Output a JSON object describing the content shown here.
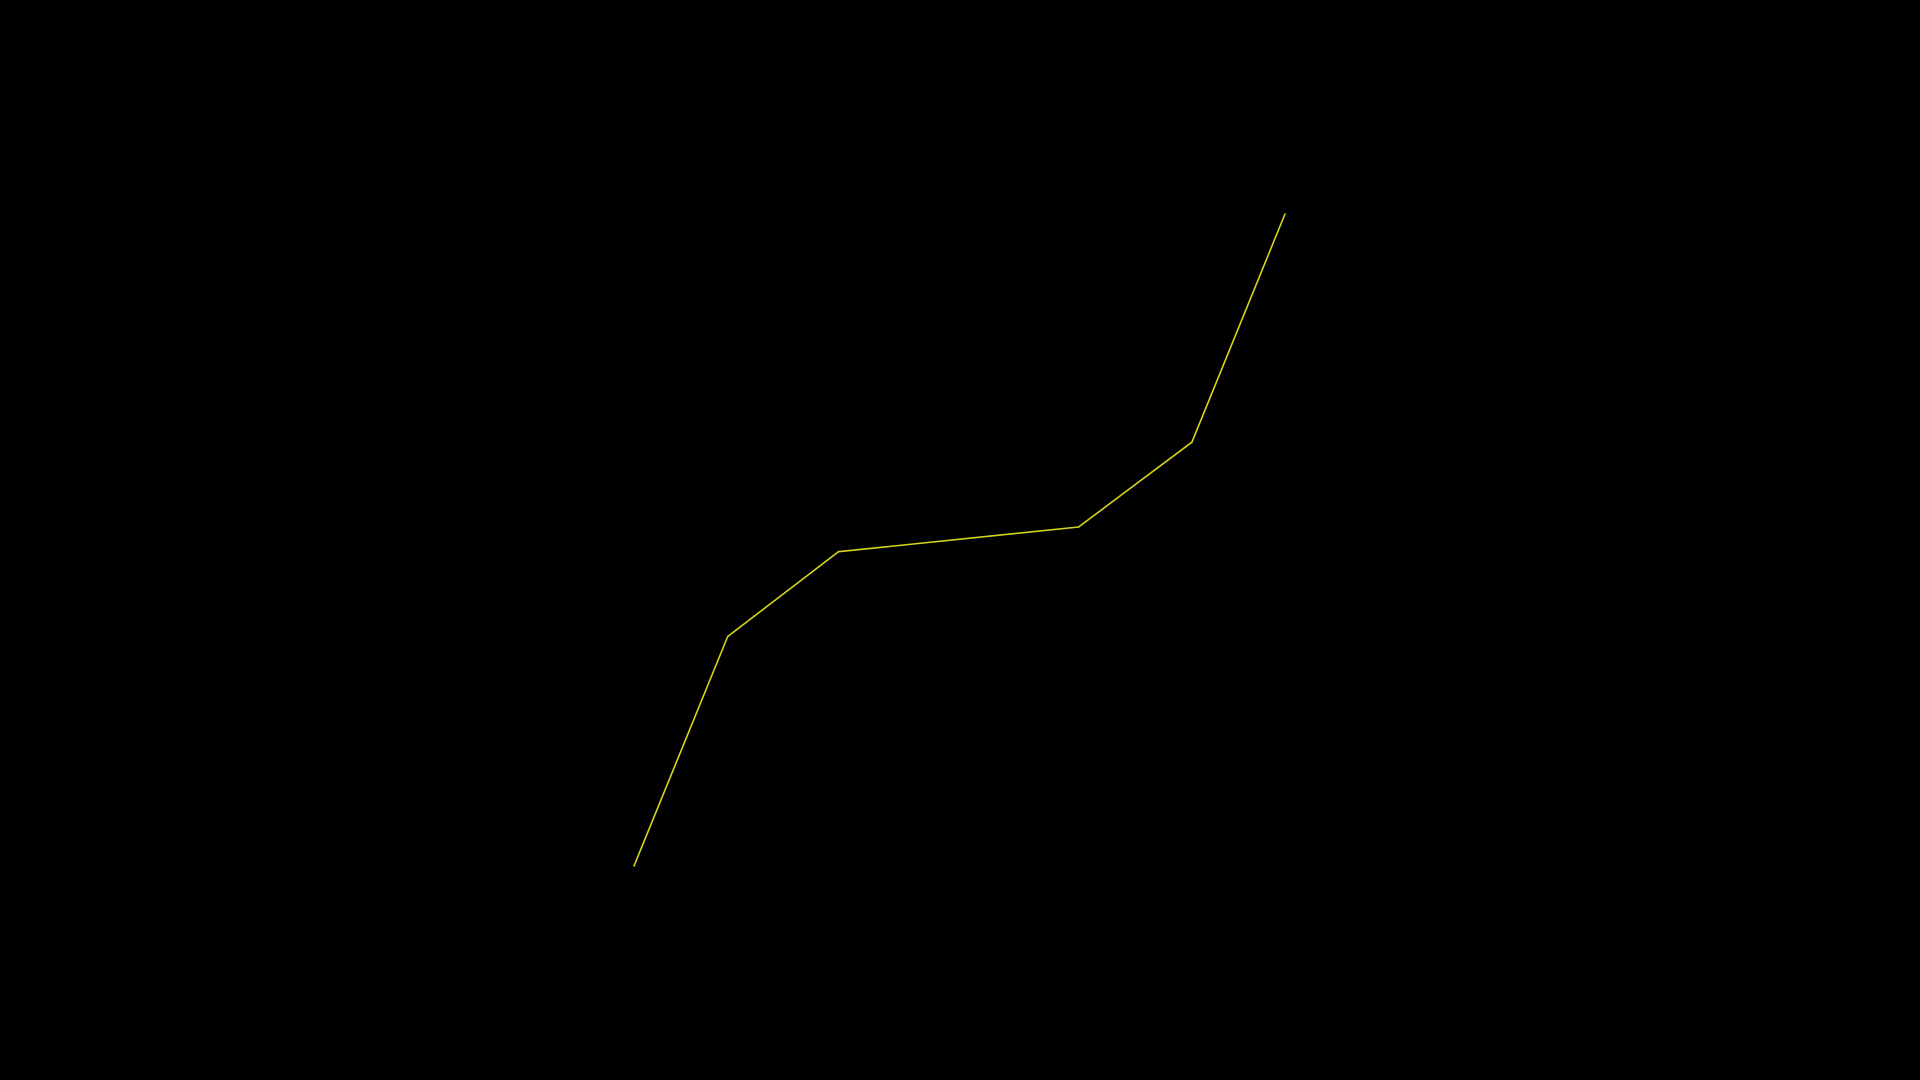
{
  "colors": {
    "background": "#000000",
    "line": "#d6d61a"
  },
  "chart_data": {
    "type": "line",
    "title": "",
    "xlabel": "",
    "ylabel": "",
    "axes_visible": false,
    "grid": false,
    "legend": "none",
    "xlim": [
      0,
      1
    ],
    "ylim": [
      0,
      1
    ],
    "series": [
      {
        "x": [
          0.0,
          0.144,
          0.314,
          0.683,
          0.857,
          1.0
        ],
        "y": [
          0.0,
          0.352,
          0.482,
          0.52,
          0.65,
          1.0
        ]
      }
    ]
  }
}
